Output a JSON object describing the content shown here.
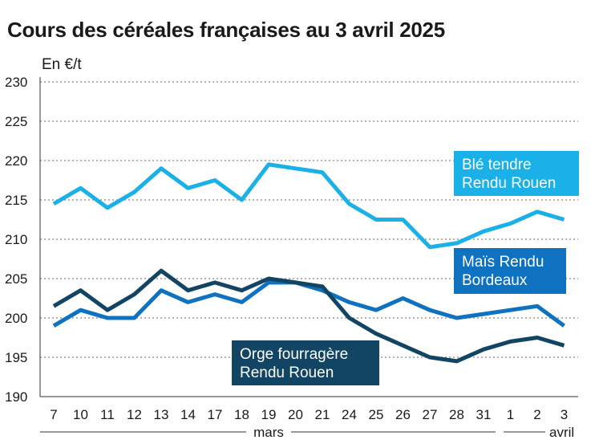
{
  "chart_data": {
    "type": "line",
    "title": "Cours des céréales françaises au 3 avril 2025",
    "ylabel": "En €/t",
    "xlabel": "",
    "ylim": [
      190,
      230
    ],
    "yticks": [
      190,
      195,
      200,
      205,
      210,
      215,
      220,
      225,
      230
    ],
    "grid": true,
    "categories": [
      "7",
      "10",
      "11",
      "12",
      "13",
      "14",
      "17",
      "18",
      "19",
      "20",
      "21",
      "24",
      "25",
      "26",
      "27",
      "28",
      "31",
      "1",
      "2",
      "3"
    ],
    "months": [
      {
        "label": "mars",
        "from": 0,
        "to": 16
      },
      {
        "label": "avril",
        "from": 17,
        "to": 19
      }
    ],
    "series": [
      {
        "name": "Blé tendre Rendu Rouen",
        "label_lines": [
          "Blé tendre",
          "Rendu Rouen"
        ],
        "color": "#1ab0e8",
        "values": [
          214.5,
          216.5,
          214,
          216,
          219,
          216.5,
          217.5,
          215,
          219.5,
          219,
          218.5,
          214.5,
          212.5,
          212.5,
          209,
          209.5,
          211,
          212,
          213.5,
          212.5
        ]
      },
      {
        "name": "Maïs Rendu Bordeaux",
        "label_lines": [
          "Maïs Rendu",
          "Bordeaux"
        ],
        "color": "#0f72c0",
        "values": [
          199,
          201,
          200,
          200,
          203.5,
          202,
          203,
          202,
          204.5,
          204.5,
          203.5,
          202,
          201,
          202.5,
          201,
          200,
          200.5,
          201,
          201.5,
          199
        ]
      },
      {
        "name": "Orge fourragère Rendu Rouen",
        "label_lines": [
          "Orge fourragère",
          "Rendu Rouen"
        ],
        "color": "#124563",
        "values": [
          201.5,
          203.5,
          201,
          203,
          206,
          203.5,
          204.5,
          203.5,
          205,
          204.5,
          204,
          200,
          198,
          196.5,
          195,
          194.5,
          196,
          197,
          197.5,
          196.5
        ]
      }
    ]
  }
}
